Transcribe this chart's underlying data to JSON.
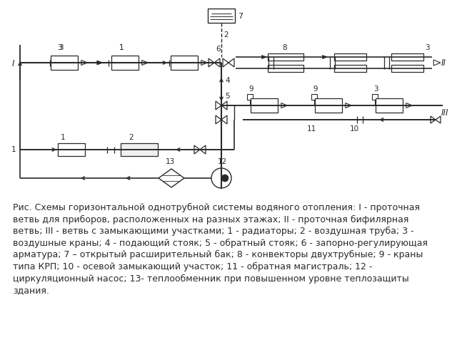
{
  "caption": "Рис. Схемы горизонтальной однотрубной системы водяного отопления: I - проточная\nветвь для приборов, расположенных на разных этажах; II - проточная бифилярная\nветвь; III - ветвь с замыкающими участками; 1 - радиаторы; 2 - воздушная труба; 3 -\nвоздушные краны; 4 - подающий стояк; 5 - обратный стояк; 6 - запорно-регулирующая\nарматура; 7 – открытый расширительный бак; 8 - конвекторы двухтрубные; 9 - краны\nтипа КРП; 10 - осевой замыкающий участок; 11 - обратная магистраль; 12 -\nциркуляционный насос; 13- теплообменник при повышенном уровне теплозащиты\nздания.",
  "bg_color": "#ffffff",
  "line_color": "#2a2a2a",
  "caption_fontsize": 9.0
}
